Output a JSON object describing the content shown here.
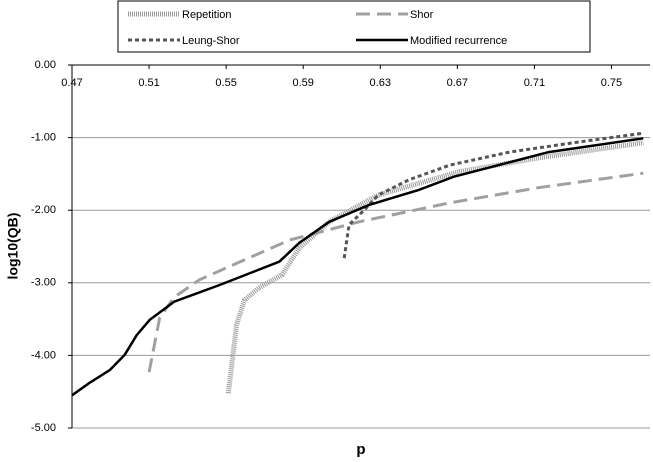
{
  "chart_data": {
    "type": "line",
    "x_label": "p",
    "y_label": "log10(QB)",
    "xlim": [
      0.47,
      0.77
    ],
    "xticks": [
      0.47,
      0.51,
      0.55,
      0.59,
      0.63,
      0.67,
      0.71,
      0.75
    ],
    "ylim": [
      -5,
      0
    ],
    "yticks": [
      {
        "value": -5,
        "label": "-5.00"
      },
      {
        "value": -4,
        "label": "-4.00"
      },
      {
        "value": -3,
        "label": "-3.00"
      },
      {
        "value": -2,
        "label": "-2.00"
      },
      {
        "value": -1,
        "label": "-1.00"
      },
      {
        "value": 0,
        "label": "0.00"
      }
    ],
    "grid": true,
    "series": [
      {
        "name": "Repetition",
        "color": "#999999",
        "style": "hatched",
        "x": [
          0.5512,
          0.5554,
          0.5595,
          0.567,
          0.579,
          0.588,
          0.6035,
          0.629,
          0.671,
          0.712,
          0.7665
        ],
        "values": [
          -4.52,
          -3.58,
          -3.24,
          -3.07,
          -2.89,
          -2.52,
          -2.16,
          -1.79,
          -1.47,
          -1.28,
          -1.07
        ]
      },
      {
        "name": "Shor",
        "color": "#a0a0a0",
        "style": "dashed",
        "x": [
          0.51,
          0.5155,
          0.523,
          0.536,
          0.554,
          0.583,
          0.619,
          0.666,
          0.712,
          0.7665
        ],
        "values": [
          -4.23,
          -3.48,
          -3.2,
          -2.96,
          -2.75,
          -2.41,
          -2.16,
          -1.9,
          -1.69,
          -1.49
        ]
      },
      {
        "name": "Leung-Shor",
        "color": "#555555",
        "style": "dotted",
        "x": [
          0.6113,
          0.6138,
          0.6216,
          0.629,
          0.645,
          0.666,
          0.697,
          0.733,
          0.7665
        ],
        "values": [
          -2.66,
          -2.2,
          -2.0,
          -1.79,
          -1.58,
          -1.38,
          -1.2,
          -1.06,
          -0.94
        ]
      },
      {
        "name": "Modified recurrence",
        "color": "#000000",
        "style": "solid",
        "x": [
          0.47,
          0.479,
          0.4897,
          0.4974,
          0.5036,
          0.5104,
          0.523,
          0.5466,
          0.5776,
          0.588,
          0.6035,
          0.624,
          0.65,
          0.668,
          0.681,
          0.7174,
          0.7665
        ],
        "values": [
          -4.55,
          -4.38,
          -4.2,
          -3.99,
          -3.72,
          -3.51,
          -3.26,
          -3.03,
          -2.71,
          -2.45,
          -2.16,
          -1.93,
          -1.72,
          -1.54,
          -1.45,
          -1.2,
          -1.01
        ]
      }
    ]
  }
}
